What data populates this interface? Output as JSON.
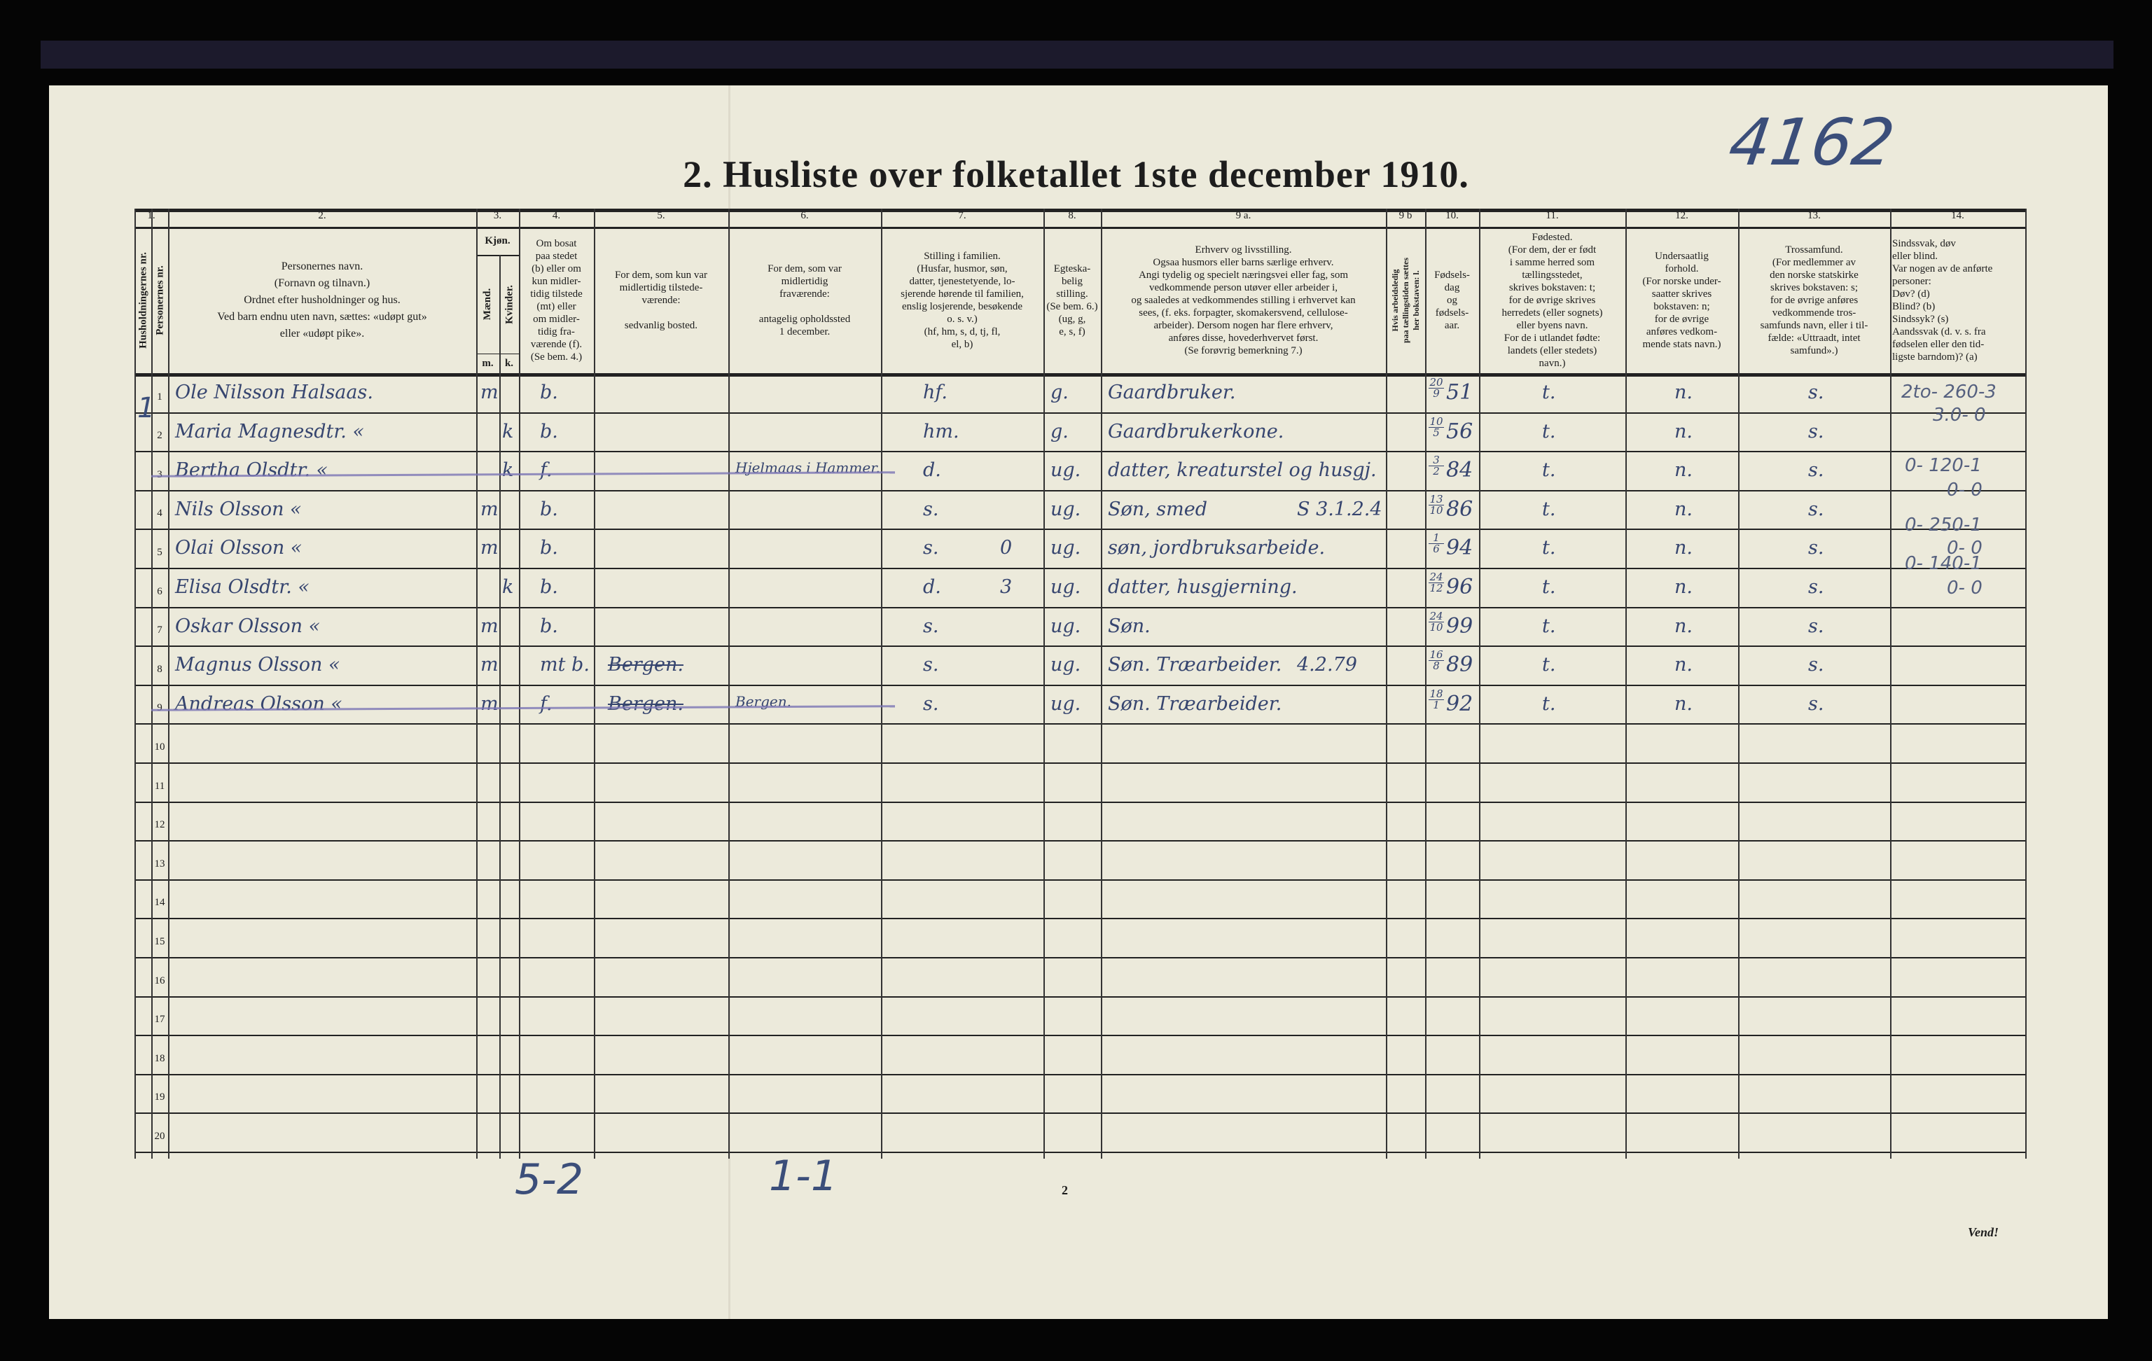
{
  "archive_number": "4162",
  "title": "2.  Husliste over folketallet 1ste december 1910.",
  "columns": {
    "numbers": [
      "1.",
      "2.",
      "3.",
      "4.",
      "5.",
      "6.",
      "7.",
      "8.",
      "9 a.",
      "9 b",
      "10.",
      "11.",
      "12.",
      "13.",
      "14."
    ],
    "c1a": "Husholdningernes nr.",
    "c1b": "Personernes nr.",
    "c2": "Personernes navn.\n(Fornavn og tilnavn.)\nOrdnet efter husholdninger og hus.\nVed barn endnu uten navn, sættes: «udøpt gut»\neller «udøpt pike».",
    "c3": "Kjøn.",
    "c3m": "Mænd.",
    "c3k": "Kvinder.",
    "c3m_short": "m.",
    "c3k_short": "k.",
    "c4": "Om bosat\npaa stedet\n(b) eller om\nkun midler-\ntidig tilstede\n(mt) eller\nom midler-\ntidig fra-\nværende (f).\n(Se bem. 4.)",
    "c5": "For dem, som kun var\nmidlertidig tilstede-\nværende:\n\nsedvanlig bosted.",
    "c6": "For dem, som var\nmidlertidig\nfraværende:\n\nantagelig opholdssted\n1 december.",
    "c7": "Stilling i familien.\n(Husfar, husmor, søn,\ndatter, tjenestetyende, lo-\nsjerende hørende til familien,\nenslig losjerende, besøkende\no. s. v.)\n(hf, hm, s, d, tj, fl,\nel, b)",
    "c8": "Egteska-\nbelig\nstilling.\n(Se bem. 6.)\n(ug, g,\ne, s, f)",
    "c9a": "Erhverv og livsstilling.\nOgsaa husmors eller barns særlige erhverv.\nAngi tydelig og specielt næringsvei eller fag, som\nvedkommende person utøver eller arbeider i,\nog saaledes at vedkommendes stilling i erhvervet kan\nsees, (f. eks. forpagter, skomakersvend, cellulose-\narbeider). Dersom nogen har flere erhverv,\nanføres disse, hovederhvervet først.\n(Se forøvrig bemerkning 7.)",
    "c9b": "Hvis arbeidsledig\npaa tællingstiden sættes\nher bokstaven: l.",
    "c10": "Fødsels-\ndag\nog\nfødsels-\naar.",
    "c11": "Fødested.\n(For dem, der er født\ni samme herred som\ntællingsstedet,\nskrives bokstaven: t;\nfor de øvrige skrives\nherredets (eller sognets)\neller byens navn.\nFor de i utlandet fødte:\nlandets (eller stedets)\nnavn.)",
    "c12": "Undersaatlig\nforhold.\n(For norske under-\nsaatter skrives\nbokstaven: n;\nfor de øvrige\nanføres vedkom-\nmende stats navn.)",
    "c13": "Trossamfund.\n(For medlemmer av\nden norske statskirke\nskrives bokstaven: s;\nfor de øvrige anføres\nvedkommende tros-\nsamfunds navn, eller i til-\nfælde: «Uttraadt, intet\nsamfund».)",
    "c14": "Sindssvak, døv\neller blind.\nVar nogen av de anførte\npersoner:\nDøv?      (d)\nBlind?     (b)\nSindssyk? (s)\nAandssvak (d. v. s. fra\nfødselen eller den tid-\nligste barndom)? (a)"
  },
  "household_mark": "1",
  "row_numbers": [
    "1",
    "2",
    "3",
    "4",
    "5",
    "6",
    "7",
    "8",
    "9",
    "10",
    "11",
    "12",
    "13",
    "14",
    "15",
    "16",
    "17",
    "18",
    "19",
    "20"
  ],
  "rows": [
    {
      "name": "Ole Nilsson Halsaas.",
      "m": "m",
      "k": "",
      "c4": "b.",
      "c5": "",
      "c6": "",
      "c7": "hf.",
      "c7x": "",
      "c8": "g.",
      "c9a": "Gaardbruker.",
      "c9x": "",
      "day": "20",
      "month": "9",
      "year": "51",
      "c11": "t.",
      "c12": "n.",
      "c13": "s.",
      "struck": false
    },
    {
      "name": "Maria Magnesdtr. «",
      "m": "",
      "k": "k",
      "c4": "b.",
      "c5": "",
      "c6": "",
      "c7": "hm.",
      "c7x": "",
      "c8": "g.",
      "c9a": "Gaardbrukerkone.",
      "c9x": "",
      "day": "10",
      "month": "5",
      "year": "56",
      "c11": "t.",
      "c12": "n.",
      "c13": "s.",
      "struck": false
    },
    {
      "name": "Bertha Olsdtr. «",
      "m": "",
      "k": "k",
      "c4": "f.",
      "c5": "",
      "c6": "Hjelmaas i Hammer.",
      "c7": "d.",
      "c7x": "",
      "c8": "ug.",
      "c9a": "datter, kreaturstel og husgj.",
      "c9x": "",
      "day": "3",
      "month": "2",
      "year": "84",
      "c11": "t.",
      "c12": "n.",
      "c13": "s.",
      "struck": true
    },
    {
      "name": "Nils Olsson «",
      "m": "m",
      "k": "",
      "c4": "b.",
      "c5": "",
      "c6": "",
      "c7": "s.",
      "c7x": "",
      "c8": "ug.",
      "c9a": "Søn, smed",
      "c9x": "S 3.1.2.4",
      "day": "13",
      "month": "10",
      "year": "86",
      "c11": "t.",
      "c12": "n.",
      "c13": "s.",
      "struck": false
    },
    {
      "name": "Olai Olsson «",
      "m": "m",
      "k": "",
      "c4": "b.",
      "c5": "",
      "c6": "",
      "c7": "s.",
      "c7x": "0",
      "c8": "ug.",
      "c9a": "søn, jordbruksarbeide.",
      "c9x": "",
      "day": "1",
      "month": "6",
      "year": "94",
      "c11": "t.",
      "c12": "n.",
      "c13": "s.",
      "struck": false
    },
    {
      "name": "Elisa Olsdtr. «",
      "m": "",
      "k": "k",
      "c4": "b.",
      "c5": "",
      "c6": "",
      "c7": "d.",
      "c7x": "3",
      "c8": "ug.",
      "c9a": "datter, husgjerning.",
      "c9x": "",
      "day": "24",
      "month": "12",
      "year": "96",
      "c11": "t.",
      "c12": "n.",
      "c13": "s.",
      "struck": false
    },
    {
      "name": "Oskar Olsson «",
      "m": "m",
      "k": "",
      "c4": "b.",
      "c5": "",
      "c6": "",
      "c7": "s.",
      "c7x": "",
      "c8": "ug.",
      "c9a": "Søn.",
      "c9x": "",
      "day": "24",
      "month": "10",
      "year": "99",
      "c11": "t.",
      "c12": "n.",
      "c13": "s.",
      "struck": false
    },
    {
      "name": "Magnus Olsson «",
      "m": "m",
      "k": "",
      "c4": "mt b.",
      "c5": "Bergen.",
      "c6": "",
      "c7": "s.",
      "c7x": "",
      "c8": "ug.",
      "c9a": "Søn. Træarbeider.",
      "c9x": "4.2.79",
      "day": "16",
      "month": "8",
      "year": "89",
      "c11": "t.",
      "c12": "n.",
      "c13": "s.",
      "struck": false
    },
    {
      "name": "Andreas Olsson «",
      "m": "m",
      "k": "",
      "c4": "f.",
      "c5": "Bergen.",
      "c6": "Bergen.",
      "c7": "s.",
      "c7x": "",
      "c8": "ug.",
      "c9a": "Søn. Træarbeider.",
      "c9x": "",
      "day": "18",
      "month": "1",
      "year": "92",
      "c11": "t.",
      "c12": "n.",
      "c13": "s.",
      "struck": true
    }
  ],
  "col14_notes": [
    "2to- 260-3",
    "3.0- 0",
    "0- 120-1",
    "0- 0",
    "0- 250-1",
    "0- 0",
    "0- 140-1",
    "0- 0"
  ],
  "bottom_notes": [
    "5-2",
    "1-1"
  ],
  "page_number": "2",
  "vend": "Vend!",
  "ink_color": "#36456f",
  "paper_color": "#eceadb"
}
